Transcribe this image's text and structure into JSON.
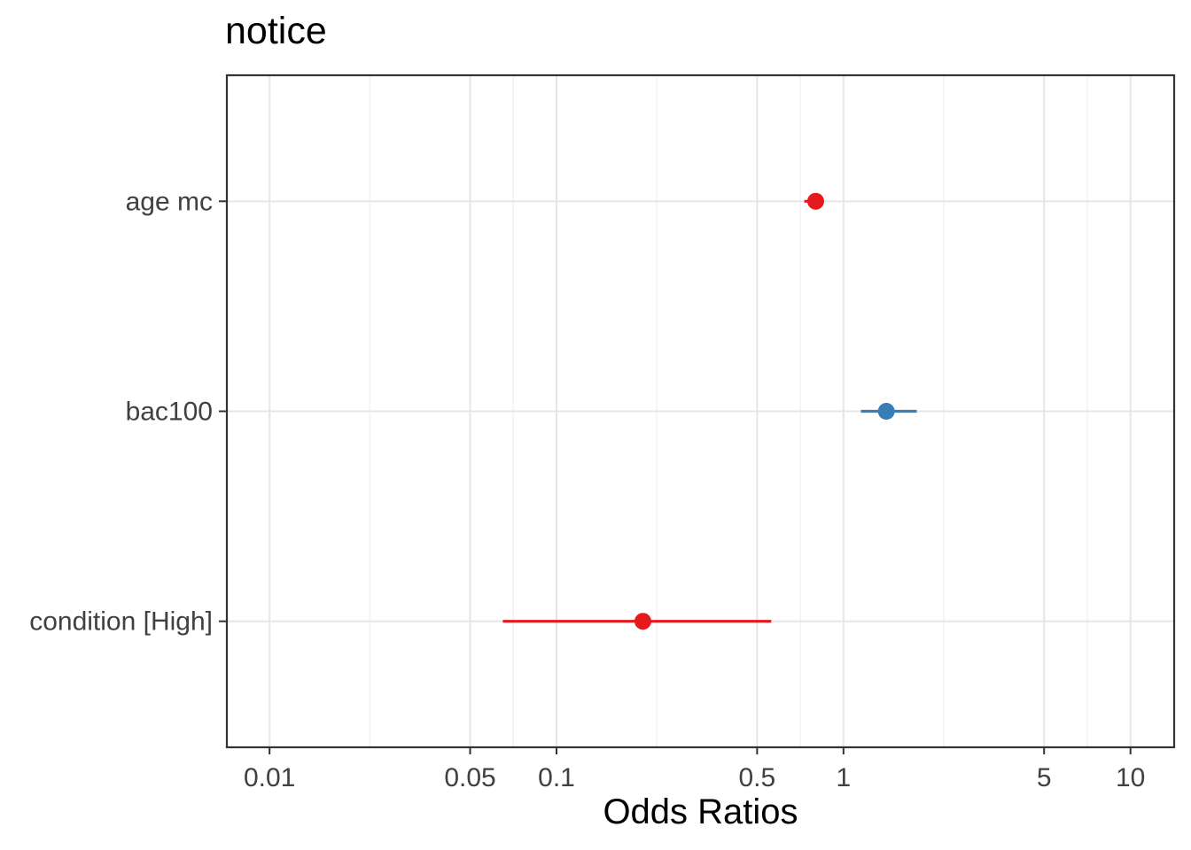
{
  "chart_data": {
    "type": "scatter",
    "chart_kind": "forest-plot-odds-ratios",
    "title": "notice",
    "xlabel": "Odds Ratios",
    "ylabel": "",
    "x_scale": "log10",
    "xlim": [
      0.0071,
      14.2
    ],
    "grid": "on",
    "legend": "none",
    "x_ticks": {
      "values": [
        0.01,
        0.05,
        0.1,
        0.5,
        1,
        5,
        10
      ],
      "labels": [
        "0.01",
        "0.05",
        "0.1",
        "0.5",
        "1",
        "5",
        "10"
      ]
    },
    "x_minor_breaks": [
      0.02236,
      0.07071,
      0.22361,
      0.70711,
      2.23607,
      7.07107
    ],
    "categories": [
      "age mc",
      "bac100",
      "condition [High]"
    ],
    "series": [
      {
        "name": "age mc",
        "estimate": 0.8,
        "ci_low": 0.73,
        "ci_high": 0.85,
        "color": "#E41A1C",
        "direction": "negative"
      },
      {
        "name": "bac100",
        "estimate": 1.41,
        "ci_low": 1.15,
        "ci_high": 1.8,
        "color": "#377EB8",
        "direction": "positive"
      },
      {
        "name": "condition [High]",
        "estimate": 0.2,
        "ci_low": 0.065,
        "ci_high": 0.56,
        "color": "#E41A1C",
        "direction": "negative"
      }
    ],
    "colors": {
      "positive": "#377EB8",
      "negative": "#E41A1C",
      "grid_major": "#E6E6E6",
      "grid_minor": "#F1F1F1",
      "panel_border": "#333333",
      "axis_text": "#404040",
      "title": "#000000",
      "background": "#FFFFFF"
    }
  }
}
